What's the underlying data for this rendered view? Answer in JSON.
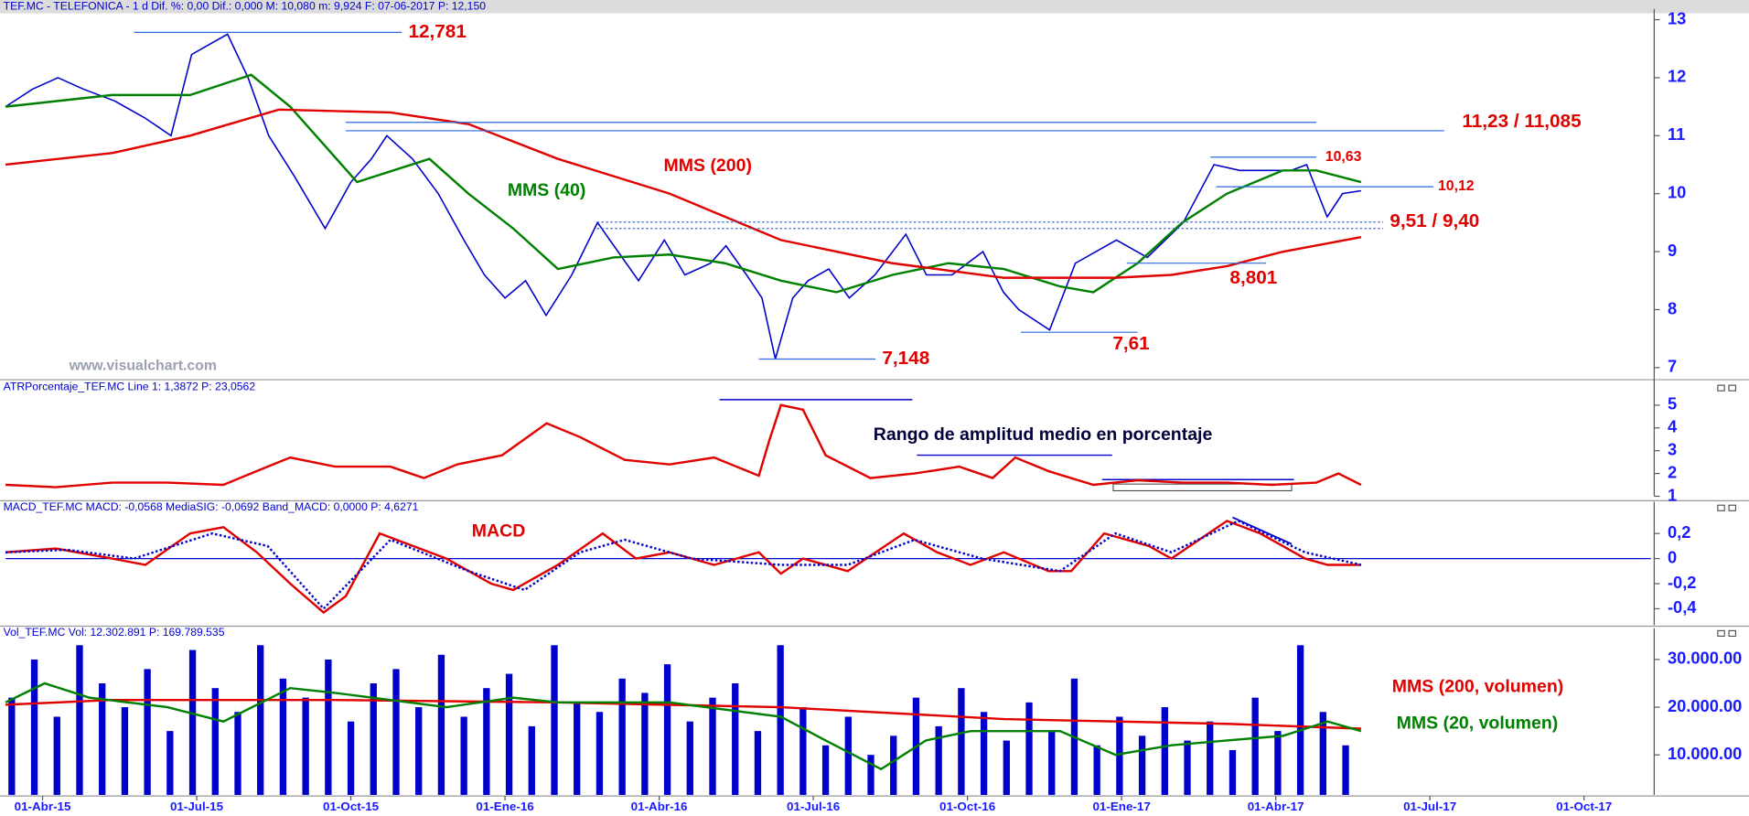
{
  "chart_data": [
    {
      "type": "line",
      "title": "TEF.MC - TELEFONICA - 1 d  Dif. %: 0,00  Dif.: 0,000  M: 10,080  m: 9,924  F: 07-06-2017  P: 12,150",
      "watermark": "www.visualchart.com",
      "xlim": [
        -0.72,
        31.3
      ],
      "ylim": [
        6.83,
        13.11
      ],
      "yticks": [
        7,
        8,
        9,
        10,
        11,
        12,
        13
      ],
      "series": [
        {
          "color": "#0000cc",
          "x": [
            -0.72,
            -0.2,
            0.3,
            0.8,
            1.4,
            2.0,
            2.5,
            2.9,
            3.3,
            3.6,
            4.0,
            4.4,
            4.9,
            5.5,
            6.0,
            6.4,
            6.7,
            7.2,
            7.7,
            8.2,
            8.6,
            9.0,
            9.4,
            9.8,
            10.3,
            10.8,
            11.2,
            11.6,
            12.1,
            12.5,
            13.0,
            13.3,
            13.7,
            14.0,
            14.26,
            14.6,
            14.9,
            15.3,
            15.7,
            16.2,
            16.8,
            17.2,
            17.7,
            18.3,
            18.7,
            19.0,
            19.6,
            20.1,
            20.9,
            21.5,
            22.2,
            22.8,
            23.3,
            23.8,
            24.3,
            24.6,
            25.0,
            25.3,
            25.66
          ],
          "values": [
            11.5,
            11.8,
            12.0,
            11.8,
            11.6,
            11.3,
            11.0,
            12.4,
            12.6,
            12.75,
            12.0,
            11.0,
            10.3,
            9.4,
            10.2,
            10.6,
            11.0,
            10.6,
            10.0,
            9.2,
            8.6,
            8.2,
            8.5,
            7.9,
            8.6,
            9.5,
            9.0,
            8.5,
            9.2,
            8.6,
            8.8,
            9.1,
            8.6,
            8.2,
            7.15,
            8.2,
            8.5,
            8.7,
            8.2,
            8.6,
            9.3,
            8.6,
            8.6,
            9.0,
            8.3,
            8.0,
            7.65,
            8.8,
            9.2,
            8.9,
            9.5,
            10.5,
            10.4,
            10.4,
            10.4,
            10.5,
            9.6,
            10.0,
            10.05
          ]
        },
        {
          "name": "MMS (40)",
          "color": "#008000",
          "x": [
            -0.72,
            1.35,
            2.87,
            4.06,
            4.82,
            6.12,
            7.53,
            8.29,
            9.16,
            10.03,
            11.11,
            12.2,
            13.28,
            14.37,
            15.45,
            16.54,
            17.63,
            18.71,
            19.8,
            20.45,
            21.31,
            22.18,
            23.05,
            24.14,
            24.79,
            25.66
          ],
          "values": [
            11.5,
            11.7,
            11.7,
            12.05,
            11.5,
            10.2,
            10.6,
            10.0,
            9.4,
            8.7,
            8.9,
            8.95,
            8.8,
            8.5,
            8.3,
            8.6,
            8.8,
            8.7,
            8.4,
            8.3,
            8.8,
            9.5,
            10.0,
            10.4,
            10.4,
            10.2
          ]
        },
        {
          "name": "MMS (200)",
          "color": "#e00000",
          "x": [
            -0.72,
            1.35,
            2.87,
            4.6,
            6.77,
            8.29,
            10.03,
            12.2,
            14.37,
            16.54,
            18.71,
            19.8,
            20.88,
            21.97,
            23.05,
            24.14,
            25.66
          ],
          "values": [
            10.5,
            10.7,
            11.0,
            11.45,
            11.4,
            11.2,
            10.6,
            10.0,
            9.2,
            8.8,
            8.55,
            8.55,
            8.55,
            8.6,
            8.75,
            9.0,
            9.25
          ]
        }
      ],
      "levels": [
        {
          "label": "12,781",
          "lines": [
            {
              "value": 12.781,
              "x": [
                1.78,
                6.99
              ]
            }
          ]
        },
        {
          "label": "11,23 / 11,085",
          "lines": [
            {
              "value": 11.23,
              "x": [
                5.9,
                24.79
              ]
            },
            {
              "value": 11.085,
              "x": [
                5.9,
                27.28
              ]
            }
          ]
        },
        {
          "label": "10,63",
          "lines": [
            {
              "value": 10.63,
              "x": [
                22.73,
                24.79
              ]
            }
          ]
        },
        {
          "label": "10,12",
          "lines": [
            {
              "value": 10.12,
              "x": [
                22.84,
                27.07
              ]
            }
          ]
        },
        {
          "label": "9,51 / 9,40",
          "dashed": true,
          "lines": [
            {
              "value": 9.51,
              "x": [
                10.79,
                26.09
              ]
            },
            {
              "value": 9.4,
              "x": [
                10.79,
                26.09
              ]
            }
          ]
        },
        {
          "label": "8,801",
          "lines": [
            {
              "value": 8.801,
              "x": [
                21.1,
                23.81
              ]
            }
          ]
        },
        {
          "label": "7,61",
          "lines": [
            {
              "value": 7.61,
              "x": [
                19.04,
                21.31
              ]
            }
          ]
        },
        {
          "label": "7,148",
          "lines": [
            {
              "value": 7.148,
              "x": [
                13.94,
                16.21
              ]
            }
          ]
        }
      ]
    },
    {
      "type": "line",
      "title": "ATRPorcentaje_TEF.MC  Line 1: 1,3872  P: 23,0562",
      "annotation": "Rango de amplitud medio en porcentaje",
      "xlim": [
        -0.72,
        31.3
      ],
      "ylim": [
        1,
        6.02
      ],
      "yticks": [
        1,
        2,
        3,
        4,
        5
      ],
      "series": [
        {
          "color": "#e00000",
          "x": [
            -0.72,
            0.26,
            1.35,
            2.43,
            3.52,
            4.38,
            4.82,
            5.69,
            6.77,
            7.42,
            8.07,
            8.94,
            9.81,
            10.46,
            11.33,
            12.2,
            13.07,
            13.94,
            14.15,
            14.37,
            14.8,
            15.24,
            16.11,
            16.97,
            17.84,
            18.49,
            18.93,
            19.58,
            20.45,
            21.31,
            22.18,
            23.05,
            23.92,
            24.79,
            25.22,
            25.66
          ],
          "values": [
            1.5,
            1.4,
            1.6,
            1.6,
            1.5,
            2.3,
            2.7,
            2.3,
            2.3,
            1.8,
            2.4,
            2.8,
            4.2,
            3.6,
            2.6,
            2.4,
            2.7,
            1.9,
            3.5,
            5.0,
            4.8,
            2.8,
            1.8,
            2.0,
            2.3,
            1.8,
            2.7,
            2.1,
            1.5,
            1.7,
            1.6,
            1.6,
            1.5,
            1.6,
            2.0,
            1.5
          ]
        }
      ]
    },
    {
      "type": "line",
      "title": "MACD_TEF.MC  MACD: -0,0568  MediaSIG: -0,0692  Band_MACD: 0,0000  P: 4,6271",
      "xlim": [
        -0.72,
        31.3
      ],
      "ylim": [
        -0.53,
        0.417
      ],
      "yticks": [
        {
          "value": 0.2,
          "label": "0,2"
        },
        0,
        {
          "value": -0.2,
          "label": "-0,2"
        },
        {
          "value": -0.4,
          "label": "-0,4"
        }
      ],
      "series": [
        {
          "name": "MACD",
          "color": "#e00000",
          "x": [
            -0.72,
            0.26,
            1.35,
            2.0,
            2.87,
            3.52,
            4.17,
            4.82,
            5.47,
            5.9,
            6.56,
            7.21,
            7.86,
            8.73,
            9.16,
            10.03,
            10.9,
            11.55,
            12.2,
            13.07,
            13.94,
            14.37,
            14.8,
            15.67,
            16.76,
            17.41,
            18.06,
            18.71,
            19.58,
            20.02,
            20.66,
            21.53,
            21.97,
            23.05,
            23.7,
            24.57,
            25.01,
            25.66
          ],
          "values": [
            0.05,
            0.08,
            0.0,
            -0.05,
            0.2,
            0.25,
            0.05,
            -0.2,
            -0.43,
            -0.3,
            0.2,
            0.1,
            0.0,
            -0.2,
            -0.25,
            -0.05,
            0.2,
            0.0,
            0.05,
            -0.05,
            0.05,
            -0.12,
            0.0,
            -0.1,
            0.2,
            0.05,
            -0.05,
            0.05,
            -0.1,
            -0.1,
            0.2,
            0.1,
            0.0,
            0.3,
            0.2,
            0.0,
            -0.05,
            -0.05
          ]
        },
        {
          "color": "#0000cc",
          "dashed": true,
          "x": [
            -0.72,
            0.48,
            1.78,
            3.3,
            4.38,
            5.47,
            6.77,
            8.29,
            9.38,
            10.46,
            11.33,
            12.63,
            14.37,
            15.67,
            16.97,
            18.28,
            19.8,
            20.88,
            21.97,
            23.27,
            24.57,
            25.66
          ],
          "values": [
            0.05,
            0.07,
            0.0,
            0.2,
            0.1,
            -0.4,
            0.15,
            -0.1,
            -0.25,
            0.05,
            0.15,
            0.0,
            -0.05,
            -0.05,
            0.15,
            0.0,
            -0.1,
            0.2,
            0.05,
            0.3,
            0.05,
            -0.05
          ]
        }
      ]
    },
    {
      "type": "bar",
      "title": "Vol_TEF.MC  Vol: 12.302.891  P: 169.789.535",
      "xlim": [
        -0.72,
        31.3
      ],
      "ylim": [
        1600000,
        35600000
      ],
      "yticks": [
        {
          "value": 30000000,
          "label": "30.000.00"
        },
        {
          "value": 20000000,
          "label": "20.000.00"
        },
        {
          "value": 10000000,
          "label": "10.000.00"
        }
      ],
      "xticks": [
        {
          "value": 0,
          "label": "01-Abr-15"
        },
        {
          "value": 3,
          "label": "01-Jul-15"
        },
        {
          "value": 6,
          "label": "01-Oct-15"
        },
        {
          "value": 9,
          "label": "01-Ene-16"
        },
        {
          "value": 12,
          "label": "01-Abr-16"
        },
        {
          "value": 15,
          "label": "01-Jul-16"
        },
        {
          "value": 18,
          "label": "01-Oct-16"
        },
        {
          "value": 21,
          "label": "01-Ene-17"
        },
        {
          "value": 24,
          "label": "01-Abr-17"
        },
        {
          "value": 27,
          "label": "01-Jul-17"
        },
        {
          "value": 30,
          "label": "01-Oct-17"
        }
      ],
      "color": "#0000cc",
      "x": [
        -0.6,
        -0.16,
        0.28,
        0.72,
        1.16,
        1.6,
        2.04,
        2.48,
        2.92,
        3.36,
        3.8,
        4.24,
        4.68,
        5.12,
        5.56,
        6.0,
        6.44,
        6.88,
        7.32,
        7.76,
        8.2,
        8.64,
        9.08,
        9.52,
        9.96,
        10.4,
        10.84,
        11.28,
        11.72,
        12.16,
        12.6,
        13.04,
        13.48,
        13.92,
        14.36,
        14.8,
        15.24,
        15.68,
        16.12,
        16.56,
        17.0,
        17.44,
        17.88,
        18.32,
        18.76,
        19.2,
        19.64,
        20.08,
        20.52,
        20.96,
        21.4,
        21.84,
        22.28,
        22.72,
        23.16,
        23.6,
        24.04,
        24.48,
        24.92,
        25.36
      ],
      "values": [
        22000000,
        30000000,
        18000000,
        33000000,
        25000000,
        20000000,
        28000000,
        15000000,
        32000000,
        24000000,
        19000000,
        33000000,
        26000000,
        22000000,
        30000000,
        17000000,
        25000000,
        28000000,
        20000000,
        31000000,
        18000000,
        24000000,
        27000000,
        16000000,
        33000000,
        21000000,
        19000000,
        26000000,
        23000000,
        29000000,
        17000000,
        22000000,
        25000000,
        15000000,
        33000000,
        20000000,
        12000000,
        18000000,
        10000000,
        14000000,
        22000000,
        16000000,
        24000000,
        19000000,
        13000000,
        21000000,
        15000000,
        26000000,
        12000000,
        18000000,
        14000000,
        20000000,
        13000000,
        17000000,
        11000000,
        22000000,
        15000000,
        33000000,
        19000000,
        12000000
      ],
      "series": [
        {
          "name": "MMS (200, volumen)",
          "color": "#e00000",
          "x": [
            -0.72,
            1.35,
            5.69,
            10.03,
            14.37,
            18.71,
            23.05,
            25.66
          ],
          "values": [
            20500000,
            21500000,
            21500000,
            21000000,
            20000000,
            17500000,
            16500000,
            15500000
          ]
        },
        {
          "name": "MMS (20, volumen)",
          "color": "#008000",
          "x": [
            -0.72,
            0.04,
            0.91,
            2.43,
            3.52,
            4.82,
            5.69,
            7.86,
            9.16,
            10.03,
            12.2,
            14.37,
            15.24,
            16.32,
            17.19,
            18.06,
            19.8,
            20.88,
            21.97,
            23.05,
            24.14,
            25.01,
            25.66
          ],
          "values": [
            21000000,
            25000000,
            22000000,
            20000000,
            17000000,
            24000000,
            23000000,
            20000000,
            22000000,
            21000000,
            21000000,
            18000000,
            13000000,
            7000000,
            13000000,
            15000000,
            15000000,
            10000000,
            12000000,
            13000000,
            14000000,
            17000000,
            15000000
          ]
        }
      ]
    }
  ]
}
